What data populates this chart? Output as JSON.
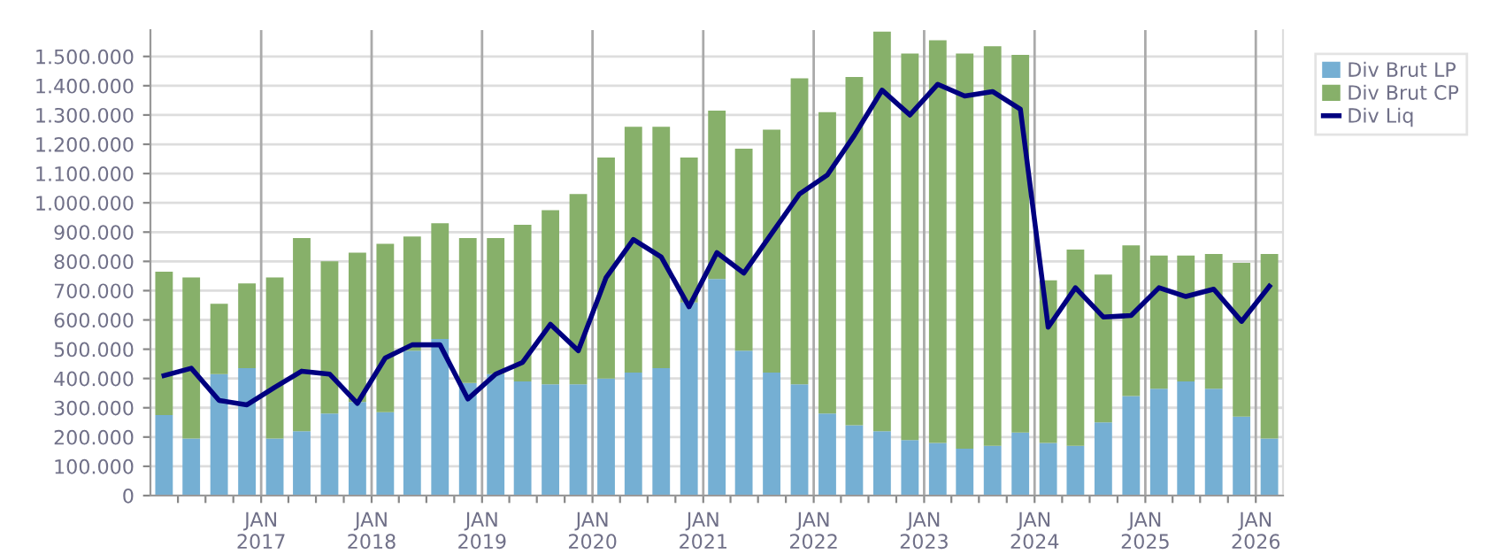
{
  "chart_data": {
    "type": "bar",
    "stacked": true,
    "legend": "right",
    "grid": true,
    "x": [
      "2016-02-15",
      "2016-05-15",
      "2016-08-15",
      "2016-11-15",
      "2017-02-15",
      "2017-05-15",
      "2017-08-15",
      "2017-11-15",
      "2018-02-15",
      "2018-05-15",
      "2018-08-15",
      "2018-11-15",
      "2019-02-15",
      "2019-05-15",
      "2019-08-15",
      "2019-11-15",
      "2020-02-15",
      "2020-05-15",
      "2020-08-15",
      "2020-11-15",
      "2021-02-15",
      "2021-05-15",
      "2021-08-15",
      "2021-11-15",
      "2022-02-15",
      "2022-05-15",
      "2022-08-15",
      "2022-11-15",
      "2023-02-15",
      "2023-05-15",
      "2023-08-15",
      "2023-11-15",
      "2024-02-15",
      "2024-05-15",
      "2024-08-15",
      "2024-11-15",
      "2025-02-15",
      "2025-05-15",
      "2025-08-15",
      "2025-11-15",
      "2026-02-15"
    ],
    "series": [
      {
        "name": "Div Brut LP",
        "color": "#75afd3",
        "values": [
          275000,
          195000,
          415000,
          435000,
          195000,
          220000,
          280000,
          320000,
          285000,
          495000,
          535000,
          385000,
          415000,
          390000,
          380000,
          380000,
          400000,
          420000,
          435000,
          660000,
          740000,
          495000,
          420000,
          380000,
          280000,
          240000,
          220000,
          190000,
          180000,
          160000,
          170000,
          215000,
          180000,
          170000,
          250000,
          340000,
          365000,
          390000,
          365000,
          270000,
          195000
        ]
      },
      {
        "name": "Div Brut CP",
        "color": "#87b06a",
        "values": [
          490000,
          550000,
          240000,
          290000,
          550000,
          660000,
          520000,
          510000,
          575000,
          390000,
          395000,
          495000,
          465000,
          535000,
          595000,
          650000,
          755000,
          840000,
          825000,
          495000,
          575000,
          690000,
          830000,
          1045000,
          1030000,
          1190000,
          1365000,
          1320000,
          1375000,
          1350000,
          1365000,
          1290000,
          555000,
          670000,
          505000,
          515000,
          455000,
          430000,
          460000,
          525000,
          630000
        ]
      },
      {
        "name": "Div Liq",
        "type": "line",
        "color": "#000080",
        "values": [
          410000,
          435000,
          325000,
          310000,
          370000,
          425000,
          415000,
          315000,
          470000,
          515000,
          515000,
          330000,
          415000,
          455000,
          585000,
          495000,
          745000,
          875000,
          815000,
          645000,
          830000,
          760000,
          895000,
          1030000,
          1095000,
          1230000,
          1385000,
          1300000,
          1405000,
          1365000,
          1380000,
          1320000,
          575000,
          710000,
          610000,
          615000,
          710000,
          680000,
          705000,
          595000,
          715000
        ]
      }
    ],
    "xlim": [
      "2016-01-01",
      "2026-04-01"
    ],
    "xticks": [
      {
        "value": "2016-04-01",
        "label": null
      },
      {
        "value": "2016-07-01",
        "label": null
      },
      {
        "value": "2016-10-01",
        "label": null
      },
      {
        "value": "2017-01-01",
        "label": "JAN\n2017"
      },
      {
        "value": "2017-04-01",
        "label": null
      },
      {
        "value": "2017-07-01",
        "label": null
      },
      {
        "value": "2017-10-01",
        "label": null
      },
      {
        "value": "2018-01-01",
        "label": "JAN\n2018"
      },
      {
        "value": "2018-04-01",
        "label": null
      },
      {
        "value": "2018-07-01",
        "label": null
      },
      {
        "value": "2018-10-01",
        "label": null
      },
      {
        "value": "2019-01-01",
        "label": "JAN\n2019"
      },
      {
        "value": "2019-04-01",
        "label": null
      },
      {
        "value": "2019-07-01",
        "label": null
      },
      {
        "value": "2019-10-01",
        "label": null
      },
      {
        "value": "2020-01-01",
        "label": "JAN\n2020"
      },
      {
        "value": "2020-04-01",
        "label": null
      },
      {
        "value": "2020-07-01",
        "label": null
      },
      {
        "value": "2020-10-01",
        "label": null
      },
      {
        "value": "2021-01-01",
        "label": "JAN\n2021"
      },
      {
        "value": "2021-04-01",
        "label": null
      },
      {
        "value": "2021-07-01",
        "label": null
      },
      {
        "value": "2021-10-01",
        "label": null
      },
      {
        "value": "2022-01-01",
        "label": "JAN\n2022"
      },
      {
        "value": "2022-04-01",
        "label": null
      },
      {
        "value": "2022-07-01",
        "label": null
      },
      {
        "value": "2022-10-01",
        "label": null
      },
      {
        "value": "2023-01-01",
        "label": "JAN\n2023"
      },
      {
        "value": "2023-04-01",
        "label": null
      },
      {
        "value": "2023-07-01",
        "label": null
      },
      {
        "value": "2023-10-01",
        "label": null
      },
      {
        "value": "2024-01-01",
        "label": "JAN\n2024"
      },
      {
        "value": "2024-04-01",
        "label": null
      },
      {
        "value": "2024-07-01",
        "label": null
      },
      {
        "value": "2024-10-01",
        "label": null
      },
      {
        "value": "2025-01-01",
        "label": "JAN\n2025"
      },
      {
        "value": "2025-04-01",
        "label": null
      },
      {
        "value": "2025-07-01",
        "label": null
      },
      {
        "value": "2025-10-01",
        "label": null
      },
      {
        "value": "2026-01-01",
        "label": "JAN\n2026"
      }
    ],
    "ylim": [
      0,
      1590000
    ],
    "yticks": [
      0,
      {
        "value": 100000,
        "label": "100.000"
      },
      {
        "value": 200000,
        "label": "200.000"
      },
      {
        "value": 300000,
        "label": "300.000"
      },
      {
        "value": 400000,
        "label": "400.000"
      },
      {
        "value": 500000,
        "label": "500.000"
      },
      {
        "value": 600000,
        "label": "600.000"
      },
      {
        "value": 700000,
        "label": "700.000"
      },
      {
        "value": 800000,
        "label": "800.000"
      },
      {
        "value": 900000,
        "label": "900.000"
      },
      {
        "value": 1000000,
        "label": "1.000.000"
      },
      {
        "value": 1100000,
        "label": "1.100.000"
      },
      {
        "value": 1200000,
        "label": "1.200.000"
      },
      {
        "value": 1300000,
        "label": "1.300.000"
      },
      {
        "value": 1400000,
        "label": "1.400.000"
      },
      {
        "value": 1500000,
        "label": "1.500.000"
      }
    ]
  }
}
